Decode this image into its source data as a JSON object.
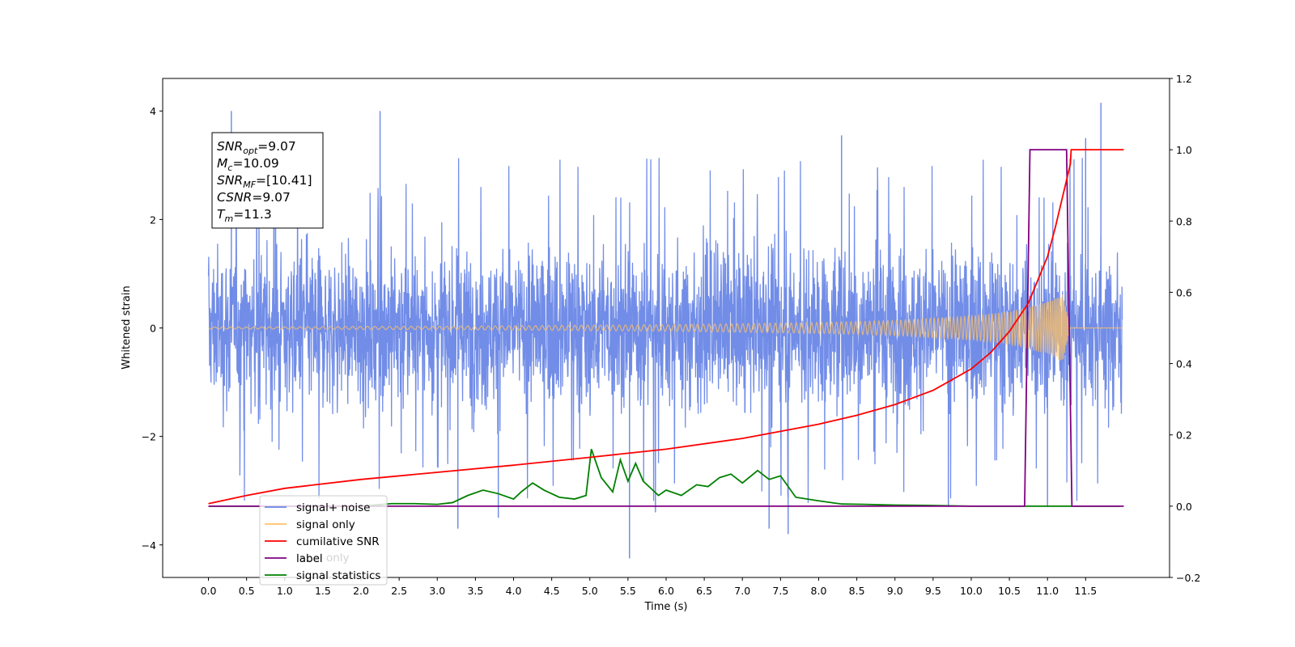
{
  "chart_data": {
    "type": "line",
    "title": "",
    "xlabel": "Time (s)",
    "ylabel_left": "Whitened strain",
    "ylabel_right": "",
    "xlim": [
      -0.6,
      12.6
    ],
    "ylim_left": [
      -4.6,
      4.6
    ],
    "ylim_right": [
      -0.2,
      1.2
    ],
    "x_ticks": [
      "0.0",
      "0.5",
      "1.0",
      "1.5",
      "2.0",
      "2.5",
      "3.0",
      "3.5",
      "4.0",
      "4.5",
      "5.0",
      "5.5",
      "6.0",
      "6.5",
      "7.0",
      "7.5",
      "8.0",
      "8.5",
      "9.0",
      "9.5",
      "10.0",
      "10.5",
      "11.0",
      "11.5"
    ],
    "y_ticks_left": [
      "-4",
      "-2",
      "0",
      "2",
      "4"
    ],
    "y_ticks_right": [
      "-0.2",
      "0.0",
      "0.2",
      "0.4",
      "0.6",
      "0.8",
      "1.0",
      "1.2"
    ],
    "grid": false,
    "legend_position": "lower-left",
    "series": [
      {
        "name": "signal+ noise",
        "axis": "left",
        "color": "#6a87e6",
        "style": "dense noise band, approx ±1.8 with spikes up to ±4",
        "envelope_x": [
          0,
          2,
          4,
          6,
          8,
          10,
          11.2,
          11.3,
          12
        ],
        "envelope_y": [
          1.8,
          1.8,
          1.8,
          1.8,
          1.8,
          1.8,
          1.8,
          1.8,
          1.8
        ],
        "spikes": [
          [
            0.3,
            4.0
          ],
          [
            2.25,
            4.0
          ],
          [
            11.7,
            4.15
          ],
          [
            11.5,
            3.5
          ],
          [
            8.3,
            3.55
          ],
          [
            5.52,
            -4.25
          ],
          [
            7.6,
            -3.8
          ],
          [
            3.27,
            -3.7
          ],
          [
            3.8,
            -3.5
          ],
          [
            5.86,
            -3.4
          ],
          [
            11.0,
            -3.3
          ],
          [
            9.7,
            -3.3
          ],
          [
            7.35,
            -3.7
          ]
        ]
      },
      {
        "name": "signal only",
        "axis": "left",
        "color": "#ffc266",
        "style": "chirp with growing amplitude ending at merger",
        "x": [
          0,
          1,
          2,
          3,
          4,
          5,
          6,
          7,
          8,
          9,
          10,
          10.5,
          11.0,
          11.2,
          11.3,
          12
        ],
        "amplitude": [
          0.02,
          0.02,
          0.03,
          0.03,
          0.04,
          0.05,
          0.06,
          0.08,
          0.1,
          0.14,
          0.22,
          0.3,
          0.48,
          0.62,
          0.0,
          0.0
        ]
      },
      {
        "name": "cumilative SNR",
        "axis": "right",
        "color": "#ff0000",
        "x": [
          0,
          0.5,
          1,
          2,
          3,
          4,
          5,
          6,
          7,
          8,
          8.5,
          9,
          9.5,
          10,
          10.25,
          10.5,
          10.75,
          11.0,
          11.1,
          11.2,
          11.3,
          11.31,
          12
        ],
        "y": [
          0.007,
          0.03,
          0.05,
          0.075,
          0.095,
          0.115,
          0.137,
          0.16,
          0.19,
          0.23,
          0.255,
          0.285,
          0.325,
          0.385,
          0.43,
          0.49,
          0.57,
          0.7,
          0.78,
          0.87,
          0.96,
          1.0,
          1.0
        ]
      },
      {
        "name": "label",
        "axis": "right",
        "color": "#800080",
        "x": [
          0,
          10.7,
          10.77,
          11.25,
          11.32,
          12
        ],
        "y": [
          0.0,
          0.0,
          1.0,
          1.0,
          0.0,
          0.0
        ]
      },
      {
        "name": "signal statistics",
        "axis": "right",
        "color": "#008000",
        "x": [
          0,
          1,
          2,
          2.4,
          2.7,
          3.0,
          3.2,
          3.4,
          3.6,
          3.8,
          4.0,
          4.1,
          4.25,
          4.4,
          4.6,
          4.8,
          4.95,
          5.02,
          5.15,
          5.3,
          5.4,
          5.5,
          5.6,
          5.7,
          5.9,
          6.0,
          6.2,
          6.4,
          6.55,
          6.7,
          6.85,
          7.0,
          7.2,
          7.35,
          7.5,
          7.7,
          8.0,
          8.3,
          8.6,
          9.0,
          9.5,
          10.0,
          10.5,
          11.0,
          11.5,
          11.95
        ],
        "y": [
          0.0,
          0.0,
          0.0,
          0.007,
          0.007,
          0.005,
          0.01,
          0.03,
          0.045,
          0.035,
          0.02,
          0.04,
          0.065,
          0.045,
          0.025,
          0.02,
          0.03,
          0.16,
          0.08,
          0.04,
          0.13,
          0.07,
          0.12,
          0.07,
          0.03,
          0.045,
          0.03,
          0.06,
          0.055,
          0.08,
          0.09,
          0.065,
          0.1,
          0.075,
          0.085,
          0.025,
          0.015,
          0.006,
          0.005,
          0.003,
          0.002,
          0.0,
          0.0,
          0.0,
          0.0,
          0.0
        ]
      }
    ],
    "legend_items": [
      {
        "label": "signal+ noise",
        "color": "#6a87e6"
      },
      {
        "label": "signal only",
        "color": "#ffc266"
      },
      {
        "label": "cumilative SNR",
        "color": "#ff0000"
      },
      {
        "label": "label",
        "color": "#800080"
      },
      {
        "label": "signal statistics",
        "color": "#008000"
      }
    ],
    "info_box": {
      "lines": [
        {
          "name": "SNR",
          "sub": "opt",
          "value": "=9.07"
        },
        {
          "name": "M",
          "sub": "c",
          "value": "=10.09"
        },
        {
          "name": "SNR",
          "sub": "MF",
          "value": "=[10.41]"
        },
        {
          "name": "CSNR",
          "sub": "",
          "value": "=9.07"
        },
        {
          "name": "T",
          "sub": "m",
          "value": "=11.3"
        }
      ]
    },
    "ghost_text": {
      "label_text": "label only"
    }
  }
}
